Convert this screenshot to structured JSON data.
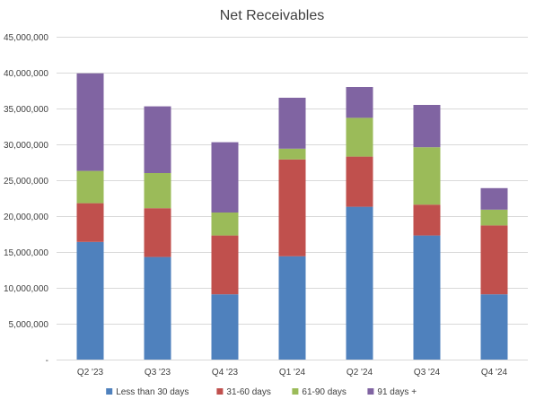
{
  "chart_data": {
    "type": "bar",
    "stacked": true,
    "title": "Net Receivables",
    "xlabel": "",
    "ylabel": "",
    "categories": [
      "Q2 '23",
      "Q3 '23",
      "Q4 '23",
      "Q1 '24",
      "Q2 '24",
      "Q3 '24",
      "Q4 '24"
    ],
    "ylim": [
      0,
      45000000
    ],
    "yticks": [
      0,
      5000000,
      10000000,
      15000000,
      20000000,
      25000000,
      30000000,
      35000000,
      40000000,
      45000000
    ],
    "ytick_labels": [
      "-",
      "5,000,000",
      "10,000,000",
      "15,000,000",
      "20,000,000",
      "25,000,000",
      "30,000,000",
      "35,000,000",
      "40,000,000",
      "45,000,000"
    ],
    "grid": true,
    "legend_position": "bottom",
    "series": [
      {
        "name": "Less than 30 days",
        "color": "#4f81bd",
        "values": [
          16400000,
          14300000,
          9100000,
          14400000,
          21300000,
          17300000,
          9100000
        ]
      },
      {
        "name": "31-60 days",
        "color": "#c0504d",
        "values": [
          5400000,
          6800000,
          8200000,
          13500000,
          7000000,
          4300000,
          9600000
        ]
      },
      {
        "name": "61-90 days",
        "color": "#9bbb59",
        "values": [
          4500000,
          4900000,
          3200000,
          1500000,
          5400000,
          8000000,
          2200000
        ]
      },
      {
        "name": "91 days +",
        "color": "#8064a2",
        "values": [
          13600000,
          9300000,
          9800000,
          7100000,
          4300000,
          5900000,
          3000000
        ]
      }
    ]
  }
}
